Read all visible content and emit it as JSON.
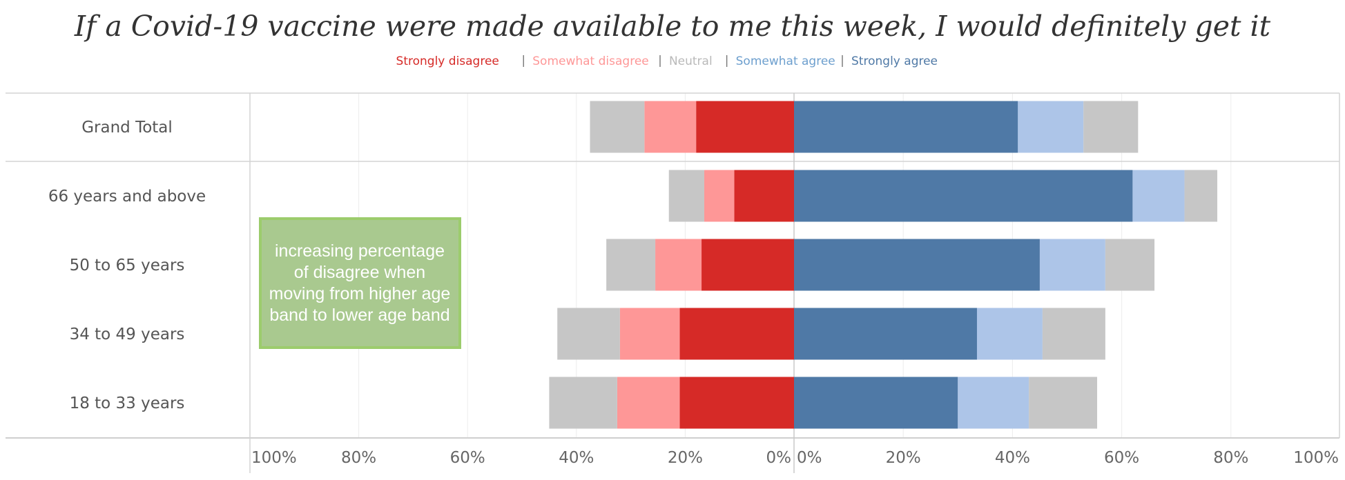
{
  "chart_data": {
    "type": "bar",
    "title": "If a Covid-19 vaccine were made available to me this week, I would definitely get it",
    "legend": {
      "placement": "top-center",
      "entries": [
        {
          "name": "Strongly disagree",
          "color": "#d62a27"
        },
        {
          "name": "Somewhat disagree",
          "color": "#fe9797"
        },
        {
          "name": "Neutral",
          "color": "#b9b9b9"
        },
        {
          "name": "Somewhat agree",
          "color": "#6d9fce"
        },
        {
          "name": "Strongly agree",
          "color": "#4f79a6"
        }
      ],
      "separator": "|"
    },
    "categories": [
      "Grand Total",
      "66 years and above",
      "50 to 65 years",
      "34 to 49 years",
      "18 to 33 years"
    ],
    "left_panel": {
      "direction": "left",
      "series": [
        {
          "name": "Strongly disagree",
          "color": "#d62a27",
          "values": [
            18,
            11,
            17,
            21,
            21
          ]
        },
        {
          "name": "Somewhat disagree",
          "color": "#fe9797",
          "values": [
            9.5,
            5.5,
            8.5,
            11,
            11.5
          ]
        },
        {
          "name": "Neutral",
          "color": "#c6c6c6",
          "values": [
            10,
            6.5,
            9,
            11.5,
            12.5
          ]
        }
      ],
      "xlim": [
        0,
        100
      ],
      "ticks": [
        "100%",
        "80%",
        "60%",
        "40%",
        "20%",
        "0%"
      ]
    },
    "right_panel": {
      "direction": "right",
      "series": [
        {
          "name": "Strongly agree",
          "color": "#4f79a6",
          "values": [
            41,
            62,
            45,
            33.5,
            30
          ]
        },
        {
          "name": "Somewhat agree",
          "color": "#adc5e8",
          "values": [
            12,
            9.5,
            12,
            12,
            13
          ]
        },
        {
          "name": "Neutral",
          "color": "#c6c6c6",
          "values": [
            10,
            6,
            9,
            11.5,
            12.5
          ]
        }
      ],
      "xlim": [
        0,
        100
      ],
      "ticks": [
        "0%",
        "20%",
        "40%",
        "60%",
        "80%",
        "100%"
      ]
    },
    "annotation": {
      "text_lines": [
        "increasing percentage",
        "of disagree when",
        "moving from higher age",
        "band to lower age band"
      ],
      "fill": "#a9c98f",
      "stroke": "#9ccc6c"
    },
    "grid": true
  }
}
